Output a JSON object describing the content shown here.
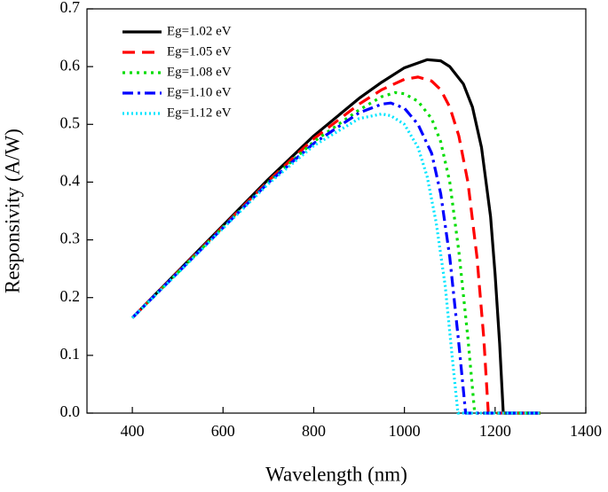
{
  "chart_data": {
    "type": "line",
    "xlabel": "Wavelength (nm)",
    "ylabel": "Responsivity (A/W)",
    "xlim": [
      300,
      1400
    ],
    "xticks": [
      400,
      600,
      800,
      1000,
      1200,
      1400
    ],
    "ylim": [
      0,
      0.7
    ],
    "yticks": [
      {
        "value": 0,
        "label": "0.0"
      },
      0.1,
      0.2,
      0.3,
      0.4,
      0.5,
      0.6,
      0.7
    ],
    "legend": "upper left",
    "series": [
      {
        "name": "Eg=1.02 eV",
        "color": "#000000",
        "line_style": "solid",
        "x": [
          400,
          500,
          600,
          700,
          800,
          900,
          950,
          1000,
          1050,
          1080,
          1100,
          1130,
          1150,
          1170,
          1190,
          1200,
          1210,
          1218,
          1300
        ],
        "values": [
          0.165,
          0.245,
          0.325,
          0.405,
          0.48,
          0.545,
          0.573,
          0.598,
          0.612,
          0.61,
          0.6,
          0.57,
          0.53,
          0.46,
          0.34,
          0.24,
          0.12,
          0,
          0
        ]
      },
      {
        "name": "Eg=1.05 eV",
        "color": "#ff0000",
        "line_style": "dashed",
        "x": [
          400,
          500,
          600,
          700,
          800,
          900,
          950,
          1000,
          1030,
          1060,
          1080,
          1100,
          1120,
          1140,
          1160,
          1175,
          1185,
          1300
        ],
        "values": [
          0.165,
          0.244,
          0.323,
          0.402,
          0.475,
          0.535,
          0.56,
          0.578,
          0.582,
          0.575,
          0.56,
          0.53,
          0.48,
          0.4,
          0.27,
          0.13,
          0,
          0
        ]
      },
      {
        "name": "Eg=1.08 eV",
        "color": "#00dd00",
        "line_style": "dotted",
        "x": [
          400,
          500,
          600,
          700,
          800,
          900,
          950,
          980,
          1000,
          1030,
          1060,
          1080,
          1100,
          1120,
          1140,
          1155,
          1300
        ],
        "values": [
          0.165,
          0.243,
          0.322,
          0.4,
          0.47,
          0.525,
          0.548,
          0.555,
          0.553,
          0.54,
          0.51,
          0.47,
          0.4,
          0.28,
          0.13,
          0,
          0
        ]
      },
      {
        "name": "Eg=1.10 eV",
        "color": "#0000ff",
        "line_style": "dashdot",
        "x": [
          400,
          500,
          600,
          700,
          800,
          900,
          950,
          970,
          1000,
          1030,
          1060,
          1080,
          1100,
          1120,
          1135,
          1300
        ],
        "values": [
          0.165,
          0.243,
          0.321,
          0.399,
          0.467,
          0.52,
          0.535,
          0.537,
          0.528,
          0.5,
          0.45,
          0.38,
          0.27,
          0.12,
          0,
          0
        ]
      },
      {
        "name": "Eg=1.12 eV",
        "color": "#00e5ff",
        "line_style": "dotted-fine",
        "x": [
          400,
          500,
          600,
          700,
          800,
          900,
          950,
          970,
          1000,
          1030,
          1050,
          1070,
          1090,
          1105,
          1118,
          1300
        ],
        "values": [
          0.165,
          0.242,
          0.32,
          0.397,
          0.463,
          0.51,
          0.518,
          0.515,
          0.5,
          0.46,
          0.41,
          0.33,
          0.22,
          0.1,
          0,
          0
        ]
      }
    ]
  }
}
